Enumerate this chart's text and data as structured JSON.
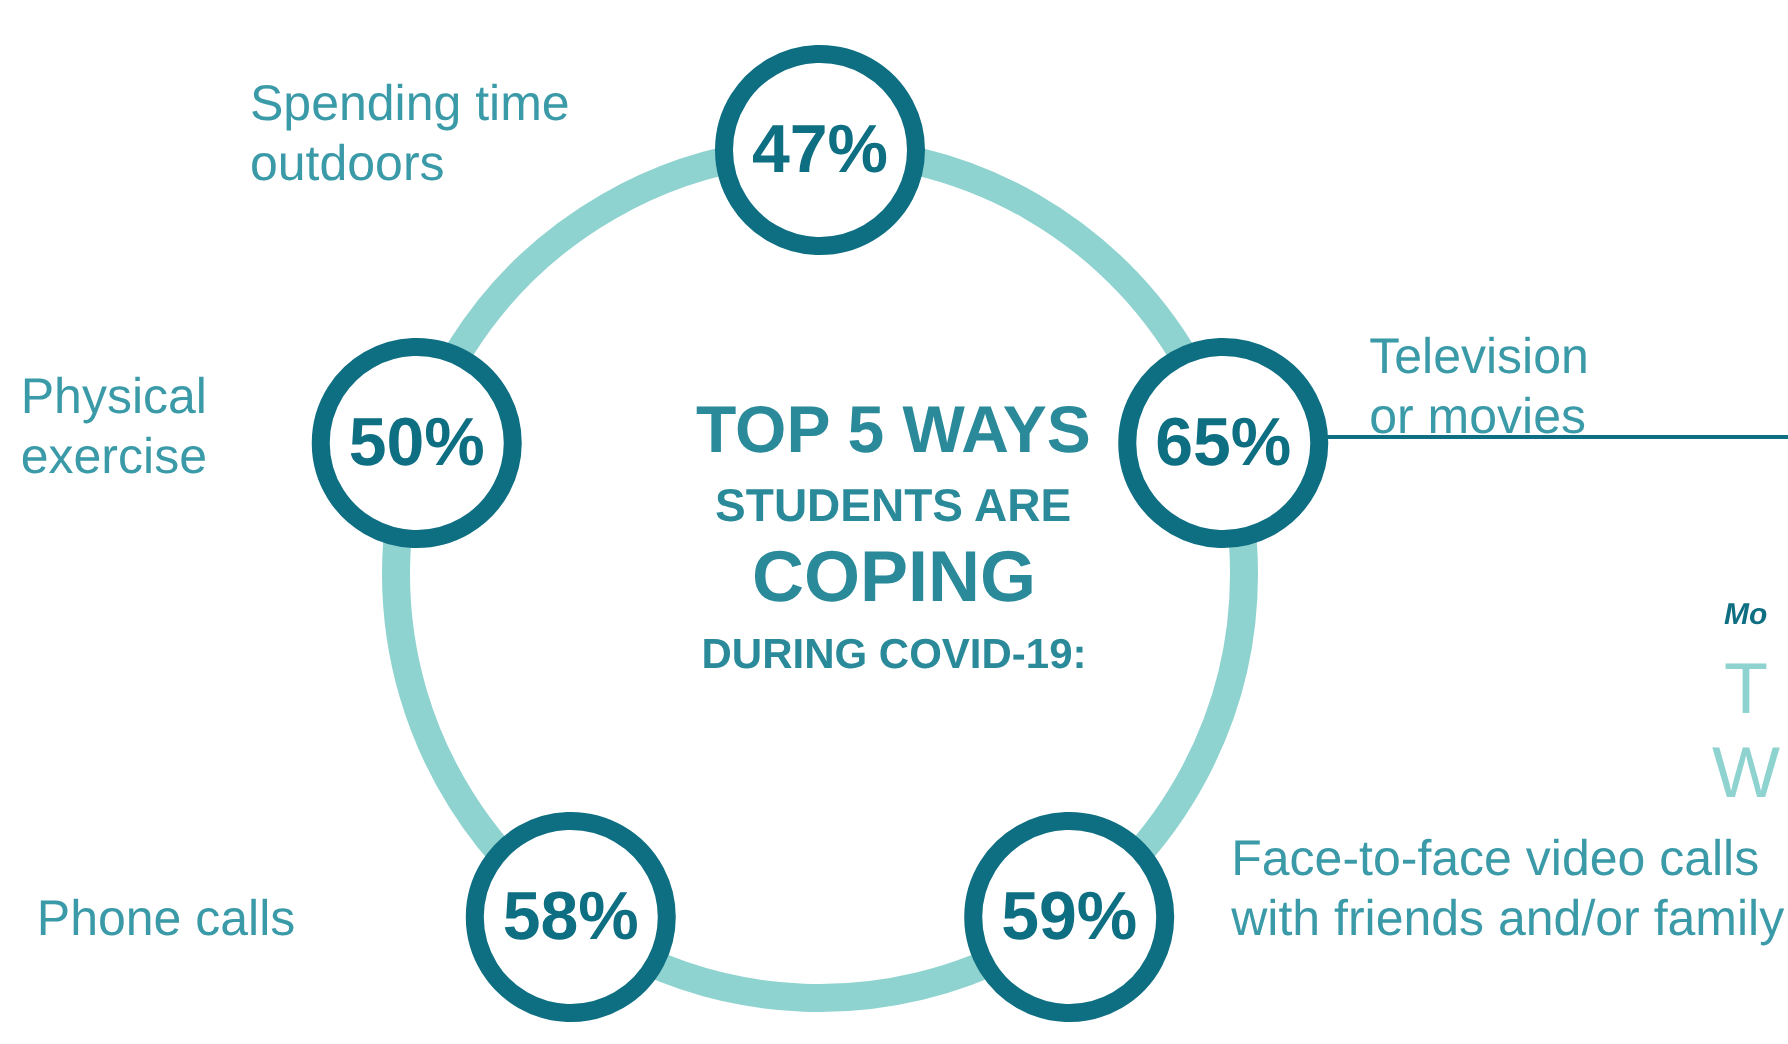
{
  "chart_data": {
    "type": "other",
    "title": "TOP 5 WAYS",
    "subtitle": "STUDENTS ARE COPING DURING COVID-19:",
    "categories": [
      "Spending time outdoors",
      "Television or movies",
      "Face-to-face video calls with friends and/or family",
      "Phone calls",
      "Physical exercise"
    ],
    "values": [
      47,
      65,
      59,
      58,
      50
    ],
    "value_labels": [
      "47%",
      "65%",
      "59%",
      "58%",
      "50%"
    ],
    "color": "#0e6e82",
    "annotations": [
      "Mo",
      "T",
      "W"
    ]
  }
}
